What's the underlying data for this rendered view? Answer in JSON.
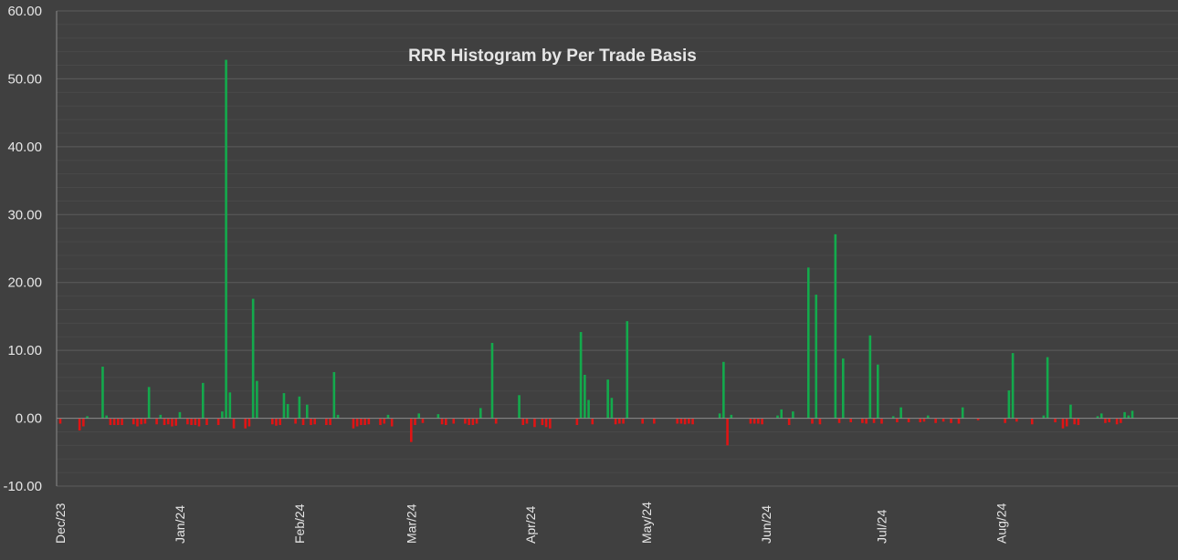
{
  "chart_data": {
    "type": "bar",
    "title": "RRR Histogram by Per Trade Basis",
    "xlabel": "",
    "ylabel": "",
    "ylim": [
      -10,
      60
    ],
    "y_ticks": [
      "60.00",
      "50.00",
      "40.00",
      "30.00",
      "20.00",
      "10.00",
      "0.00",
      "-10.00"
    ],
    "y_tick_values": [
      60,
      50,
      40,
      30,
      20,
      10,
      0,
      -10
    ],
    "x_ticks": [
      "Dec/23",
      "Jan/24",
      "Feb/24",
      "Mar/24",
      "Apr/24",
      "May/24",
      "Jun/24",
      "Jul/24",
      "Aug/24"
    ],
    "x_range": [
      "2023-12-01",
      "2024-08-26"
    ],
    "grid": "horizontal",
    "legend": "none",
    "colors": {
      "positive": "#13AA4C",
      "negative": "#E01414",
      "background": "#404040",
      "gridline": "#555555",
      "axis": "#8A8A8A",
      "text": "#E6E6E6"
    },
    "points": [
      [
        "2023-12-01",
        -0.8
      ],
      [
        "2023-12-06",
        -1.8
      ],
      [
        "2023-12-07",
        -1.2
      ],
      [
        "2023-12-08",
        0.3
      ],
      [
        "2023-12-12",
        7.6
      ],
      [
        "2023-12-13",
        0.4
      ],
      [
        "2023-12-14",
        -1.0
      ],
      [
        "2023-12-15",
        -1.0
      ],
      [
        "2023-12-16",
        -1.0
      ],
      [
        "2023-12-17",
        -1.0
      ],
      [
        "2023-12-20",
        -0.9
      ],
      [
        "2023-12-21",
        -1.2
      ],
      [
        "2023-12-22",
        -0.9
      ],
      [
        "2023-12-23",
        -0.8
      ],
      [
        "2023-12-24",
        4.6
      ],
      [
        "2023-12-26",
        -0.9
      ],
      [
        "2023-12-27",
        0.5
      ],
      [
        "2023-12-28",
        -1.0
      ],
      [
        "2023-12-29",
        -0.9
      ],
      [
        "2023-12-30",
        -1.2
      ],
      [
        "2023-12-31",
        -1.1
      ],
      [
        "2024-01-01",
        0.9
      ],
      [
        "2024-01-03",
        -0.9
      ],
      [
        "2024-01-04",
        -1.0
      ],
      [
        "2024-01-05",
        -1.0
      ],
      [
        "2024-01-06",
        -1.2
      ],
      [
        "2024-01-07",
        5.2
      ],
      [
        "2024-01-08",
        -1.0
      ],
      [
        "2024-01-11",
        -1.0
      ],
      [
        "2024-01-12",
        1.0
      ],
      [
        "2024-01-13",
        52.8
      ],
      [
        "2024-01-14",
        3.8
      ],
      [
        "2024-01-15",
        -1.5
      ],
      [
        "2024-01-18",
        -1.5
      ],
      [
        "2024-01-19",
        -1.2
      ],
      [
        "2024-01-20",
        17.6
      ],
      [
        "2024-01-21",
        5.5
      ],
      [
        "2024-01-25",
        -0.9
      ],
      [
        "2024-01-26",
        -1.1
      ],
      [
        "2024-01-27",
        -1.0
      ],
      [
        "2024-01-28",
        3.7
      ],
      [
        "2024-01-29",
        2.1
      ],
      [
        "2024-01-31",
        -0.8
      ],
      [
        "2024-02-01",
        3.2
      ],
      [
        "2024-02-02",
        -1.0
      ],
      [
        "2024-02-03",
        2.0
      ],
      [
        "2024-02-04",
        -1.0
      ],
      [
        "2024-02-05",
        -0.9
      ],
      [
        "2024-02-08",
        -1.0
      ],
      [
        "2024-02-09",
        -1.0
      ],
      [
        "2024-02-10",
        6.8
      ],
      [
        "2024-02-11",
        0.5
      ],
      [
        "2024-02-15",
        -1.5
      ],
      [
        "2024-02-16",
        -1.2
      ],
      [
        "2024-02-17",
        -1.0
      ],
      [
        "2024-02-18",
        -1.0
      ],
      [
        "2024-02-19",
        -0.9
      ],
      [
        "2024-02-22",
        -1.0
      ],
      [
        "2024-02-23",
        -0.8
      ],
      [
        "2024-02-24",
        0.5
      ],
      [
        "2024-02-25",
        -1.2
      ],
      [
        "2024-03-01",
        -3.5
      ],
      [
        "2024-03-02",
        -1.0
      ],
      [
        "2024-03-03",
        0.7
      ],
      [
        "2024-03-04",
        -0.7
      ],
      [
        "2024-03-08",
        0.6
      ],
      [
        "2024-03-09",
        -0.9
      ],
      [
        "2024-03-10",
        -1.0
      ],
      [
        "2024-03-12",
        -0.8
      ],
      [
        "2024-03-15",
        -0.8
      ],
      [
        "2024-03-16",
        -1.0
      ],
      [
        "2024-03-17",
        -1.0
      ],
      [
        "2024-03-18",
        -0.8
      ],
      [
        "2024-03-19",
        1.5
      ],
      [
        "2024-03-22",
        11.1
      ],
      [
        "2024-03-23",
        -0.8
      ],
      [
        "2024-03-29",
        3.4
      ],
      [
        "2024-03-30",
        -1.0
      ],
      [
        "2024-03-31",
        -0.8
      ],
      [
        "2024-04-02",
        -1.3
      ],
      [
        "2024-04-04",
        -1.0
      ],
      [
        "2024-04-05",
        -1.3
      ],
      [
        "2024-04-06",
        -1.5
      ],
      [
        "2024-04-13",
        -1.0
      ],
      [
        "2024-04-14",
        12.7
      ],
      [
        "2024-04-15",
        6.4
      ],
      [
        "2024-04-16",
        2.7
      ],
      [
        "2024-04-17",
        -0.9
      ],
      [
        "2024-04-21",
        5.7
      ],
      [
        "2024-04-22",
        3.0
      ],
      [
        "2024-04-23",
        -0.9
      ],
      [
        "2024-04-24",
        -0.8
      ],
      [
        "2024-04-25",
        -0.8
      ],
      [
        "2024-04-26",
        14.3
      ],
      [
        "2024-04-30",
        -0.8
      ],
      [
        "2024-05-03",
        -0.8
      ],
      [
        "2024-05-09",
        -0.8
      ],
      [
        "2024-05-10",
        -0.8
      ],
      [
        "2024-05-11",
        -0.9
      ],
      [
        "2024-05-12",
        -0.8
      ],
      [
        "2024-05-13",
        -0.9
      ],
      [
        "2024-05-20",
        0.7
      ],
      [
        "2024-05-21",
        8.3
      ],
      [
        "2024-05-22",
        -4.0
      ],
      [
        "2024-05-23",
        0.5
      ],
      [
        "2024-05-28",
        -0.8
      ],
      [
        "2024-05-29",
        -0.8
      ],
      [
        "2024-05-30",
        -0.8
      ],
      [
        "2024-05-31",
        -0.9
      ],
      [
        "2024-06-04",
        0.4
      ],
      [
        "2024-06-05",
        1.3
      ],
      [
        "2024-06-07",
        -1.0
      ],
      [
        "2024-06-08",
        1.0
      ],
      [
        "2024-06-12",
        22.2
      ],
      [
        "2024-06-13",
        -0.8
      ],
      [
        "2024-06-14",
        18.2
      ],
      [
        "2024-06-15",
        -0.9
      ],
      [
        "2024-06-19",
        27.1
      ],
      [
        "2024-06-20",
        -0.7
      ],
      [
        "2024-06-21",
        8.8
      ],
      [
        "2024-06-23",
        -0.6
      ],
      [
        "2024-06-26",
        -0.7
      ],
      [
        "2024-06-27",
        -0.8
      ],
      [
        "2024-06-28",
        12.2
      ],
      [
        "2024-06-29",
        -0.7
      ],
      [
        "2024-06-30",
        7.9
      ],
      [
        "2024-07-01",
        -0.8
      ],
      [
        "2024-07-04",
        0.3
      ],
      [
        "2024-07-05",
        -0.6
      ],
      [
        "2024-07-06",
        1.6
      ],
      [
        "2024-07-08",
        -0.6
      ],
      [
        "2024-07-11",
        -0.6
      ],
      [
        "2024-07-12",
        -0.5
      ],
      [
        "2024-07-13",
        0.4
      ],
      [
        "2024-07-15",
        -0.7
      ],
      [
        "2024-07-17",
        -0.5
      ],
      [
        "2024-07-19",
        -0.7
      ],
      [
        "2024-07-21",
        -0.8
      ],
      [
        "2024-07-22",
        1.6
      ],
      [
        "2024-07-26",
        -0.3
      ],
      [
        "2024-08-02",
        -0.7
      ],
      [
        "2024-08-03",
        4.1
      ],
      [
        "2024-08-04",
        9.6
      ],
      [
        "2024-08-05",
        -0.5
      ],
      [
        "2024-08-09",
        -0.9
      ],
      [
        "2024-08-12",
        0.4
      ],
      [
        "2024-08-13",
        9.0
      ],
      [
        "2024-08-15",
        -0.6
      ],
      [
        "2024-08-17",
        -1.5
      ],
      [
        "2024-08-18",
        -1.2
      ],
      [
        "2024-08-19",
        2.0
      ],
      [
        "2024-08-20",
        -0.9
      ],
      [
        "2024-08-21",
        -1.0
      ],
      [
        "2024-08-26",
        0.3
      ],
      [
        "2024-08-27",
        0.7
      ],
      [
        "2024-08-28",
        -0.7
      ],
      [
        "2024-08-29",
        -0.6
      ],
      [
        "2024-08-31",
        -0.9
      ],
      [
        "2024-09-01",
        -0.7
      ],
      [
        "2024-09-02",
        0.9
      ],
      [
        "2024-09-03",
        0.4
      ],
      [
        "2024-09-04",
        1.1
      ]
    ]
  }
}
